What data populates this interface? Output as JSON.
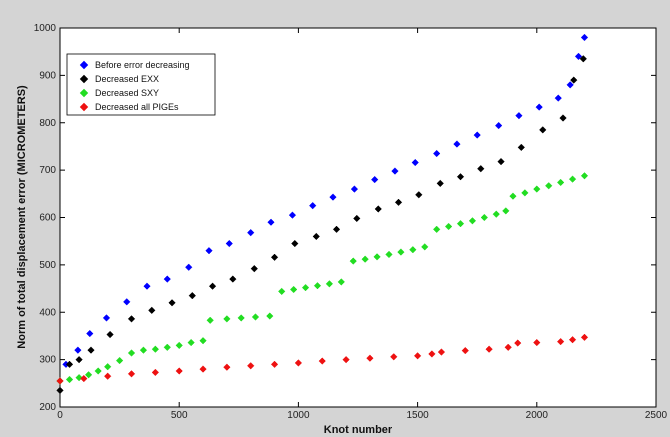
{
  "chart_data": {
    "type": "scatter",
    "xlabel": "Knot number",
    "ylabel": "Norm of total displacement error (MICROMETERS)",
    "xlim": [
      0,
      2500
    ],
    "ylim": [
      200,
      1000
    ],
    "xticks": [
      0,
      500,
      1000,
      1500,
      2000,
      2500
    ],
    "yticks": [
      200,
      300,
      400,
      500,
      600,
      700,
      800,
      900,
      1000
    ],
    "grid": false,
    "legend_position": "top-left",
    "marker": "diamond",
    "series": [
      {
        "name": "Before error decreasing",
        "color": "#0000ff",
        "x": [
          25,
          75,
          125,
          195,
          280,
          365,
          450,
          540,
          625,
          710,
          800,
          885,
          975,
          1060,
          1145,
          1235,
          1320,
          1405,
          1490,
          1580,
          1665,
          1750,
          1840,
          1925,
          2010,
          2090,
          2140,
          2175,
          2200
        ],
        "y": [
          290,
          320,
          355,
          388,
          422,
          455,
          470,
          495,
          530,
          545,
          568,
          590,
          605,
          625,
          643,
          660,
          680,
          698,
          716,
          735,
          755,
          774,
          794,
          815,
          833,
          852,
          880,
          940,
          980
        ]
      },
      {
        "name": "Decreased EXX",
        "color": "#000000",
        "x": [
          0,
          40,
          80,
          130,
          210,
          300,
          385,
          470,
          555,
          640,
          725,
          815,
          900,
          985,
          1075,
          1160,
          1245,
          1335,
          1420,
          1505,
          1595,
          1680,
          1765,
          1850,
          1935,
          2025,
          2110,
          2155,
          2195
        ],
        "y": [
          235,
          290,
          300,
          320,
          353,
          386,
          404,
          420,
          435,
          455,
          470,
          492,
          516,
          545,
          560,
          575,
          598,
          618,
          632,
          648,
          672,
          686,
          703,
          718,
          748,
          785,
          810,
          890,
          935
        ]
      },
      {
        "name": "Decreased SXY",
        "color": "#22dd22",
        "x": [
          0,
          40,
          80,
          120,
          160,
          200,
          250,
          300,
          350,
          400,
          450,
          500,
          550,
          600,
          630,
          700,
          760,
          820,
          880,
          930,
          980,
          1030,
          1080,
          1130,
          1180,
          1230,
          1280,
          1330,
          1380,
          1430,
          1480,
          1530,
          1580,
          1630,
          1680,
          1730,
          1780,
          1830,
          1870,
          1900,
          1950,
          2000,
          2050,
          2100,
          2150,
          2200
        ],
        "y": [
          255,
          258,
          262,
          268,
          276,
          285,
          298,
          314,
          320,
          322,
          326,
          330,
          336,
          340,
          383,
          386,
          388,
          390,
          392,
          444,
          448,
          452,
          456,
          460,
          464,
          508,
          512,
          517,
          522,
          527,
          532,
          538,
          575,
          581,
          587,
          593,
          600,
          607,
          614,
          645,
          652,
          660,
          667,
          674,
          681,
          688
        ]
      },
      {
        "name": "Decreased all PIGEs",
        "color": "#ee1111",
        "x": [
          0,
          100,
          200,
          300,
          400,
          500,
          600,
          700,
          800,
          900,
          1000,
          1100,
          1200,
          1300,
          1400,
          1500,
          1560,
          1600,
          1700,
          1800,
          1880,
          1920,
          2000,
          2100,
          2150,
          2200
        ],
        "y": [
          255,
          260,
          265,
          270,
          273,
          276,
          280,
          284,
          287,
          290,
          293,
          297,
          300,
          303,
          306,
          308,
          312,
          316,
          319,
          322,
          326,
          335,
          336,
          338,
          342,
          347
        ]
      }
    ]
  }
}
